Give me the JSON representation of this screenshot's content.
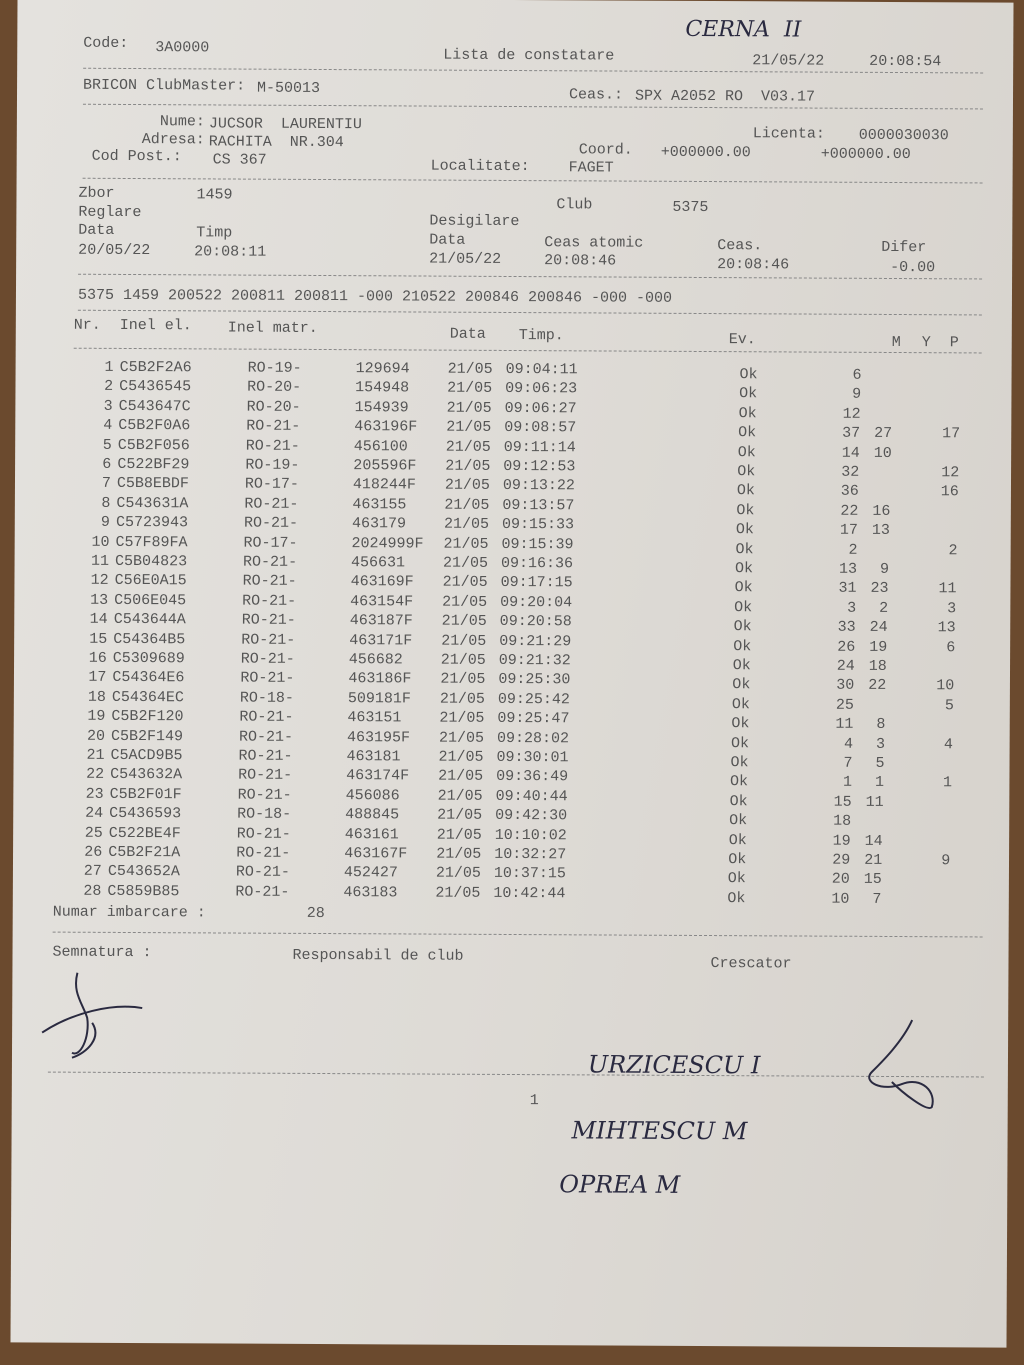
{
  "header": {
    "code_label": "Code:",
    "code": "3A0000",
    "title": "Lista de constatare",
    "date": "21/05/22",
    "time": "20:08:54"
  },
  "club_master": {
    "label": "BRICON ClubMaster:",
    "value": "M-50013",
    "clock_label": "Ceas.:",
    "clock_value": "SPX A2052 RO  V03.17"
  },
  "owner": {
    "name_label": "Nume:",
    "name": "JUCSOR  LAURENTIU",
    "address_label": "Adresa:",
    "address": "RACHITA  NR.304",
    "postal_label": "Cod Post.:",
    "postal": "CS 367",
    "locality_label": "Localitate:",
    "locality": "FAGET",
    "license_label": "Licenta:",
    "license": "0000030030",
    "coord_label": "Coord.",
    "coord1": "+000000.00",
    "coord2": "+000000.00"
  },
  "flight": {
    "zbor_label": "Zbor",
    "zbor": "1459",
    "club_label": "Club",
    "club": "5375",
    "reglare_label": "Reglare",
    "data_label": "Data",
    "timp_label": "Timp",
    "reglare_date": "20/05/22",
    "reglare_time": "20:08:11",
    "desigilare_label": "Desigilare",
    "atomic_label": "Ceas atomic",
    "ceas_label": "Ceas.",
    "difer_label": "Difer",
    "desig_date": "21/05/22",
    "atomic": "20:08:46",
    "ceas": "20:08:46",
    "difer": "-0.00"
  },
  "code_line": "5375 1459 200522 200811 200811 -000 210522 200846 200846 -000 -000",
  "columns": {
    "nr": "Nr.",
    "inel_el": "Inel el.",
    "inel_matr": "Inel matr.",
    "data": "Data",
    "timp": "Timp.",
    "ev": "Ev.",
    "m": "M",
    "y": "Y",
    "p": "P"
  },
  "rows": [
    {
      "nr": "1",
      "ring": "C5B2F2A6",
      "ro": "RO-19-",
      "matr": "129694",
      "date": "21/05",
      "time": "09:04:11",
      "ev": "Ok",
      "m": "6",
      "y": "",
      "p": ""
    },
    {
      "nr": "2",
      "ring": "C5436545",
      "ro": "RO-20-",
      "matr": "154948",
      "date": "21/05",
      "time": "09:06:23",
      "ev": "Ok",
      "m": "9",
      "y": "",
      "p": ""
    },
    {
      "nr": "3",
      "ring": "C543647C",
      "ro": "RO-20-",
      "matr": "154939",
      "date": "21/05",
      "time": "09:06:27",
      "ev": "Ok",
      "m": "12",
      "y": "",
      "p": ""
    },
    {
      "nr": "4",
      "ring": "C5B2F0A6",
      "ro": "RO-21-",
      "matr": "463196F",
      "date": "21/05",
      "time": "09:08:57",
      "ev": "Ok",
      "m": "37",
      "y": "27",
      "p": "17"
    },
    {
      "nr": "5",
      "ring": "C5B2F056",
      "ro": "RO-21-",
      "matr": "456100",
      "date": "21/05",
      "time": "09:11:14",
      "ev": "Ok",
      "m": "14",
      "y": "10",
      "p": ""
    },
    {
      "nr": "6",
      "ring": "C522BF29",
      "ro": "RO-19-",
      "matr": "205596F",
      "date": "21/05",
      "time": "09:12:53",
      "ev": "Ok",
      "m": "32",
      "y": "",
      "p": "12"
    },
    {
      "nr": "7",
      "ring": "C5B8EBDF",
      "ro": "RO-17-",
      "matr": "418244F",
      "date": "21/05",
      "time": "09:13:22",
      "ev": "Ok",
      "m": "36",
      "y": "",
      "p": "16"
    },
    {
      "nr": "8",
      "ring": "C543631A",
      "ro": "RO-21-",
      "matr": "463155",
      "date": "21/05",
      "time": "09:13:57",
      "ev": "Ok",
      "m": "22",
      "y": "16",
      "p": ""
    },
    {
      "nr": "9",
      "ring": "C5723943",
      "ro": "RO-21-",
      "matr": "463179",
      "date": "21/05",
      "time": "09:15:33",
      "ev": "Ok",
      "m": "17",
      "y": "13",
      "p": ""
    },
    {
      "nr": "10",
      "ring": "C57F89FA",
      "ro": "RO-17-",
      "matr": "2024999F",
      "date": "21/05",
      "time": "09:15:39",
      "ev": "Ok",
      "m": "2",
      "y": "",
      "p": "2"
    },
    {
      "nr": "11",
      "ring": "C5B04823",
      "ro": "RO-21-",
      "matr": "456631",
      "date": "21/05",
      "time": "09:16:36",
      "ev": "Ok",
      "m": "13",
      "y": "9",
      "p": ""
    },
    {
      "nr": "12",
      "ring": "C56E0A15",
      "ro": "RO-21-",
      "matr": "463169F",
      "date": "21/05",
      "time": "09:17:15",
      "ev": "Ok",
      "m": "31",
      "y": "23",
      "p": "11"
    },
    {
      "nr": "13",
      "ring": "C506E045",
      "ro": "RO-21-",
      "matr": "463154F",
      "date": "21/05",
      "time": "09:20:04",
      "ev": "Ok",
      "m": "3",
      "y": "2",
      "p": "3"
    },
    {
      "nr": "14",
      "ring": "C543644A",
      "ro": "RO-21-",
      "matr": "463187F",
      "date": "21/05",
      "time": "09:20:58",
      "ev": "Ok",
      "m": "33",
      "y": "24",
      "p": "13"
    },
    {
      "nr": "15",
      "ring": "C54364B5",
      "ro": "RO-21-",
      "matr": "463171F",
      "date": "21/05",
      "time": "09:21:29",
      "ev": "Ok",
      "m": "26",
      "y": "19",
      "p": "6"
    },
    {
      "nr": "16",
      "ring": "C5309689",
      "ro": "RO-21-",
      "matr": "456682",
      "date": "21/05",
      "time": "09:21:32",
      "ev": "Ok",
      "m": "24",
      "y": "18",
      "p": ""
    },
    {
      "nr": "17",
      "ring": "C54364E6",
      "ro": "RO-21-",
      "matr": "463186F",
      "date": "21/05",
      "time": "09:25:30",
      "ev": "Ok",
      "m": "30",
      "y": "22",
      "p": "10"
    },
    {
      "nr": "18",
      "ring": "C54364EC",
      "ro": "RO-18-",
      "matr": "509181F",
      "date": "21/05",
      "time": "09:25:42",
      "ev": "Ok",
      "m": "25",
      "y": "",
      "p": "5"
    },
    {
      "nr": "19",
      "ring": "C5B2F120",
      "ro": "RO-21-",
      "matr": "463151",
      "date": "21/05",
      "time": "09:25:47",
      "ev": "Ok",
      "m": "11",
      "y": "8",
      "p": ""
    },
    {
      "nr": "20",
      "ring": "C5B2F149",
      "ro": "RO-21-",
      "matr": "463195F",
      "date": "21/05",
      "time": "09:28:02",
      "ev": "Ok",
      "m": "4",
      "y": "3",
      "p": "4"
    },
    {
      "nr": "21",
      "ring": "C5ACD9B5",
      "ro": "RO-21-",
      "matr": "463181",
      "date": "21/05",
      "time": "09:30:01",
      "ev": "Ok",
      "m": "7",
      "y": "5",
      "p": ""
    },
    {
      "nr": "22",
      "ring": "C543632A",
      "ro": "RO-21-",
      "matr": "463174F",
      "date": "21/05",
      "time": "09:36:49",
      "ev": "Ok",
      "m": "1",
      "y": "1",
      "p": "1"
    },
    {
      "nr": "23",
      "ring": "C5B2F01F",
      "ro": "RO-21-",
      "matr": "456086",
      "date": "21/05",
      "time": "09:40:44",
      "ev": "Ok",
      "m": "15",
      "y": "11",
      "p": ""
    },
    {
      "nr": "24",
      "ring": "C5436593",
      "ro": "RO-18-",
      "matr": "488845",
      "date": "21/05",
      "time": "09:42:30",
      "ev": "Ok",
      "m": "18",
      "y": "",
      "p": ""
    },
    {
      "nr": "25",
      "ring": "C522BE4F",
      "ro": "RO-21-",
      "matr": "463161",
      "date": "21/05",
      "time": "10:10:02",
      "ev": "Ok",
      "m": "19",
      "y": "14",
      "p": ""
    },
    {
      "nr": "26",
      "ring": "C5B2F21A",
      "ro": "RO-21-",
      "matr": "463167F",
      "date": "21/05",
      "time": "10:32:27",
      "ev": "Ok",
      "m": "29",
      "y": "21",
      "p": "9"
    },
    {
      "nr": "27",
      "ring": "C543652A",
      "ro": "RO-21-",
      "matr": "452427",
      "date": "21/05",
      "time": "10:37:15",
      "ev": "Ok",
      "m": "20",
      "y": "15",
      "p": ""
    },
    {
      "nr": "28",
      "ring": "C5859B85",
      "ro": "RO-21-",
      "matr": "463183",
      "date": "21/05",
      "time": "10:42:44",
      "ev": "Ok",
      "m": "10",
      "y": "7",
      "p": ""
    }
  ],
  "footer": {
    "count_label": "Numar imbarcare :",
    "count": "28",
    "signature_label": "Semnatura :",
    "responsible_label": "Responsabil de club",
    "breeder_label": "Crescator",
    "page": "1"
  },
  "handwriting": {
    "top_note": "CERNA  II",
    "name1": "URZICESCU I",
    "name2": "MIHTESCU M",
    "name3": "OPREA M"
  }
}
